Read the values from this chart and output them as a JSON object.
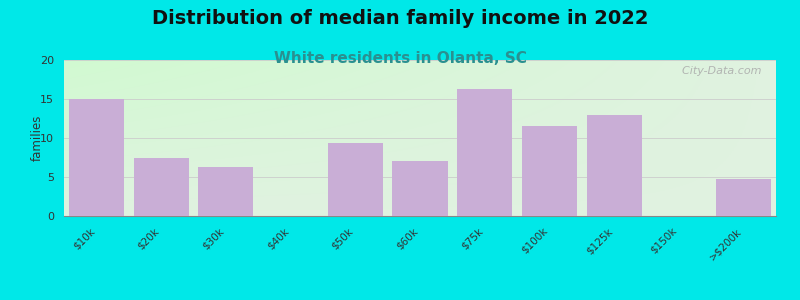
{
  "title": "Distribution of median family income in 2022",
  "subtitle": "White residents in Olanta, SC",
  "categories": [
    "$10k",
    "$20k",
    "$30k",
    "$40k",
    "$50k",
    "$60k",
    "$75k",
    "$100k",
    "$125k",
    "$150k",
    ">$200k"
  ],
  "values": [
    15,
    7.5,
    6.3,
    0,
    9.3,
    7,
    16.3,
    11.5,
    13,
    0,
    4.8
  ],
  "bar_color": "#c9aed6",
  "bar_edge_color": "#c9aed6",
  "background_outer": "#00e8e8",
  "background_inner_topleft": "#d8ecd0",
  "background_inner_right": "#f8f8f8",
  "background_inner_bottom": "#e8f8e8",
  "ylabel": "families",
  "ylim": [
    0,
    20
  ],
  "yticks": [
    0,
    5,
    10,
    15,
    20
  ],
  "title_fontsize": 14,
  "subtitle_fontsize": 11,
  "subtitle_color": "#2a9090",
  "watermark_text": "  City-Data.com",
  "watermark_color": "#aaaaaa"
}
